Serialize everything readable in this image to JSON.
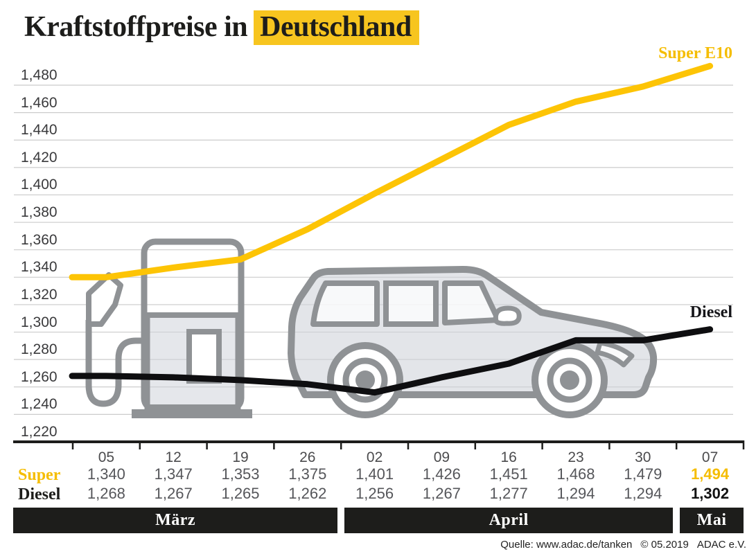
{
  "title": {
    "prefix": "Kraftstoffpreise in",
    "highlight": "Deutschland"
  },
  "chart_data": {
    "type": "line",
    "title": "Kraftstoffpreise in Deutschland",
    "x_labels": [
      "05",
      "12",
      "19",
      "26",
      "02",
      "09",
      "16",
      "23",
      "30",
      "07"
    ],
    "months": [
      {
        "label": "März",
        "cols": [
          0,
          3
        ]
      },
      {
        "label": "April",
        "cols": [
          4,
          8
        ]
      },
      {
        "label": "Mai",
        "cols": [
          9,
          9
        ]
      }
    ],
    "series": [
      {
        "name": "Super E10",
        "table_label": "Super",
        "values": [
          1.34,
          1.347,
          1.353,
          1.375,
          1.401,
          1.426,
          1.451,
          1.468,
          1.479,
          1.494
        ]
      },
      {
        "name": "Diesel",
        "table_label": "Diesel",
        "values": [
          1.268,
          1.267,
          1.265,
          1.262,
          1.256,
          1.267,
          1.277,
          1.294,
          1.294,
          1.302
        ]
      }
    ],
    "ylim": [
      1.22,
      1.48
    ],
    "ytick_step": 0.02,
    "grid": true,
    "decimal_separator": ",",
    "legend_position": "line-end-labels"
  },
  "source": {
    "quelle": "Quelle: www.adac.de/tanken",
    "copyright": "© 05.2019",
    "org": "ADAC e.V."
  },
  "colors": {
    "yellow_line": "#fdc405",
    "yellow_text": "#f5bd02",
    "title_highlight": "#f7c51f",
    "diesel_line": "#0e0e10",
    "bar_black": "#1d1d1b",
    "grid": "#cbcbcb",
    "axis": "#1d1d1b",
    "graphic_gray": "#8f9295",
    "graphic_fill": "rgba(208,212,218,0.6)",
    "value_gray": "#55565a"
  }
}
